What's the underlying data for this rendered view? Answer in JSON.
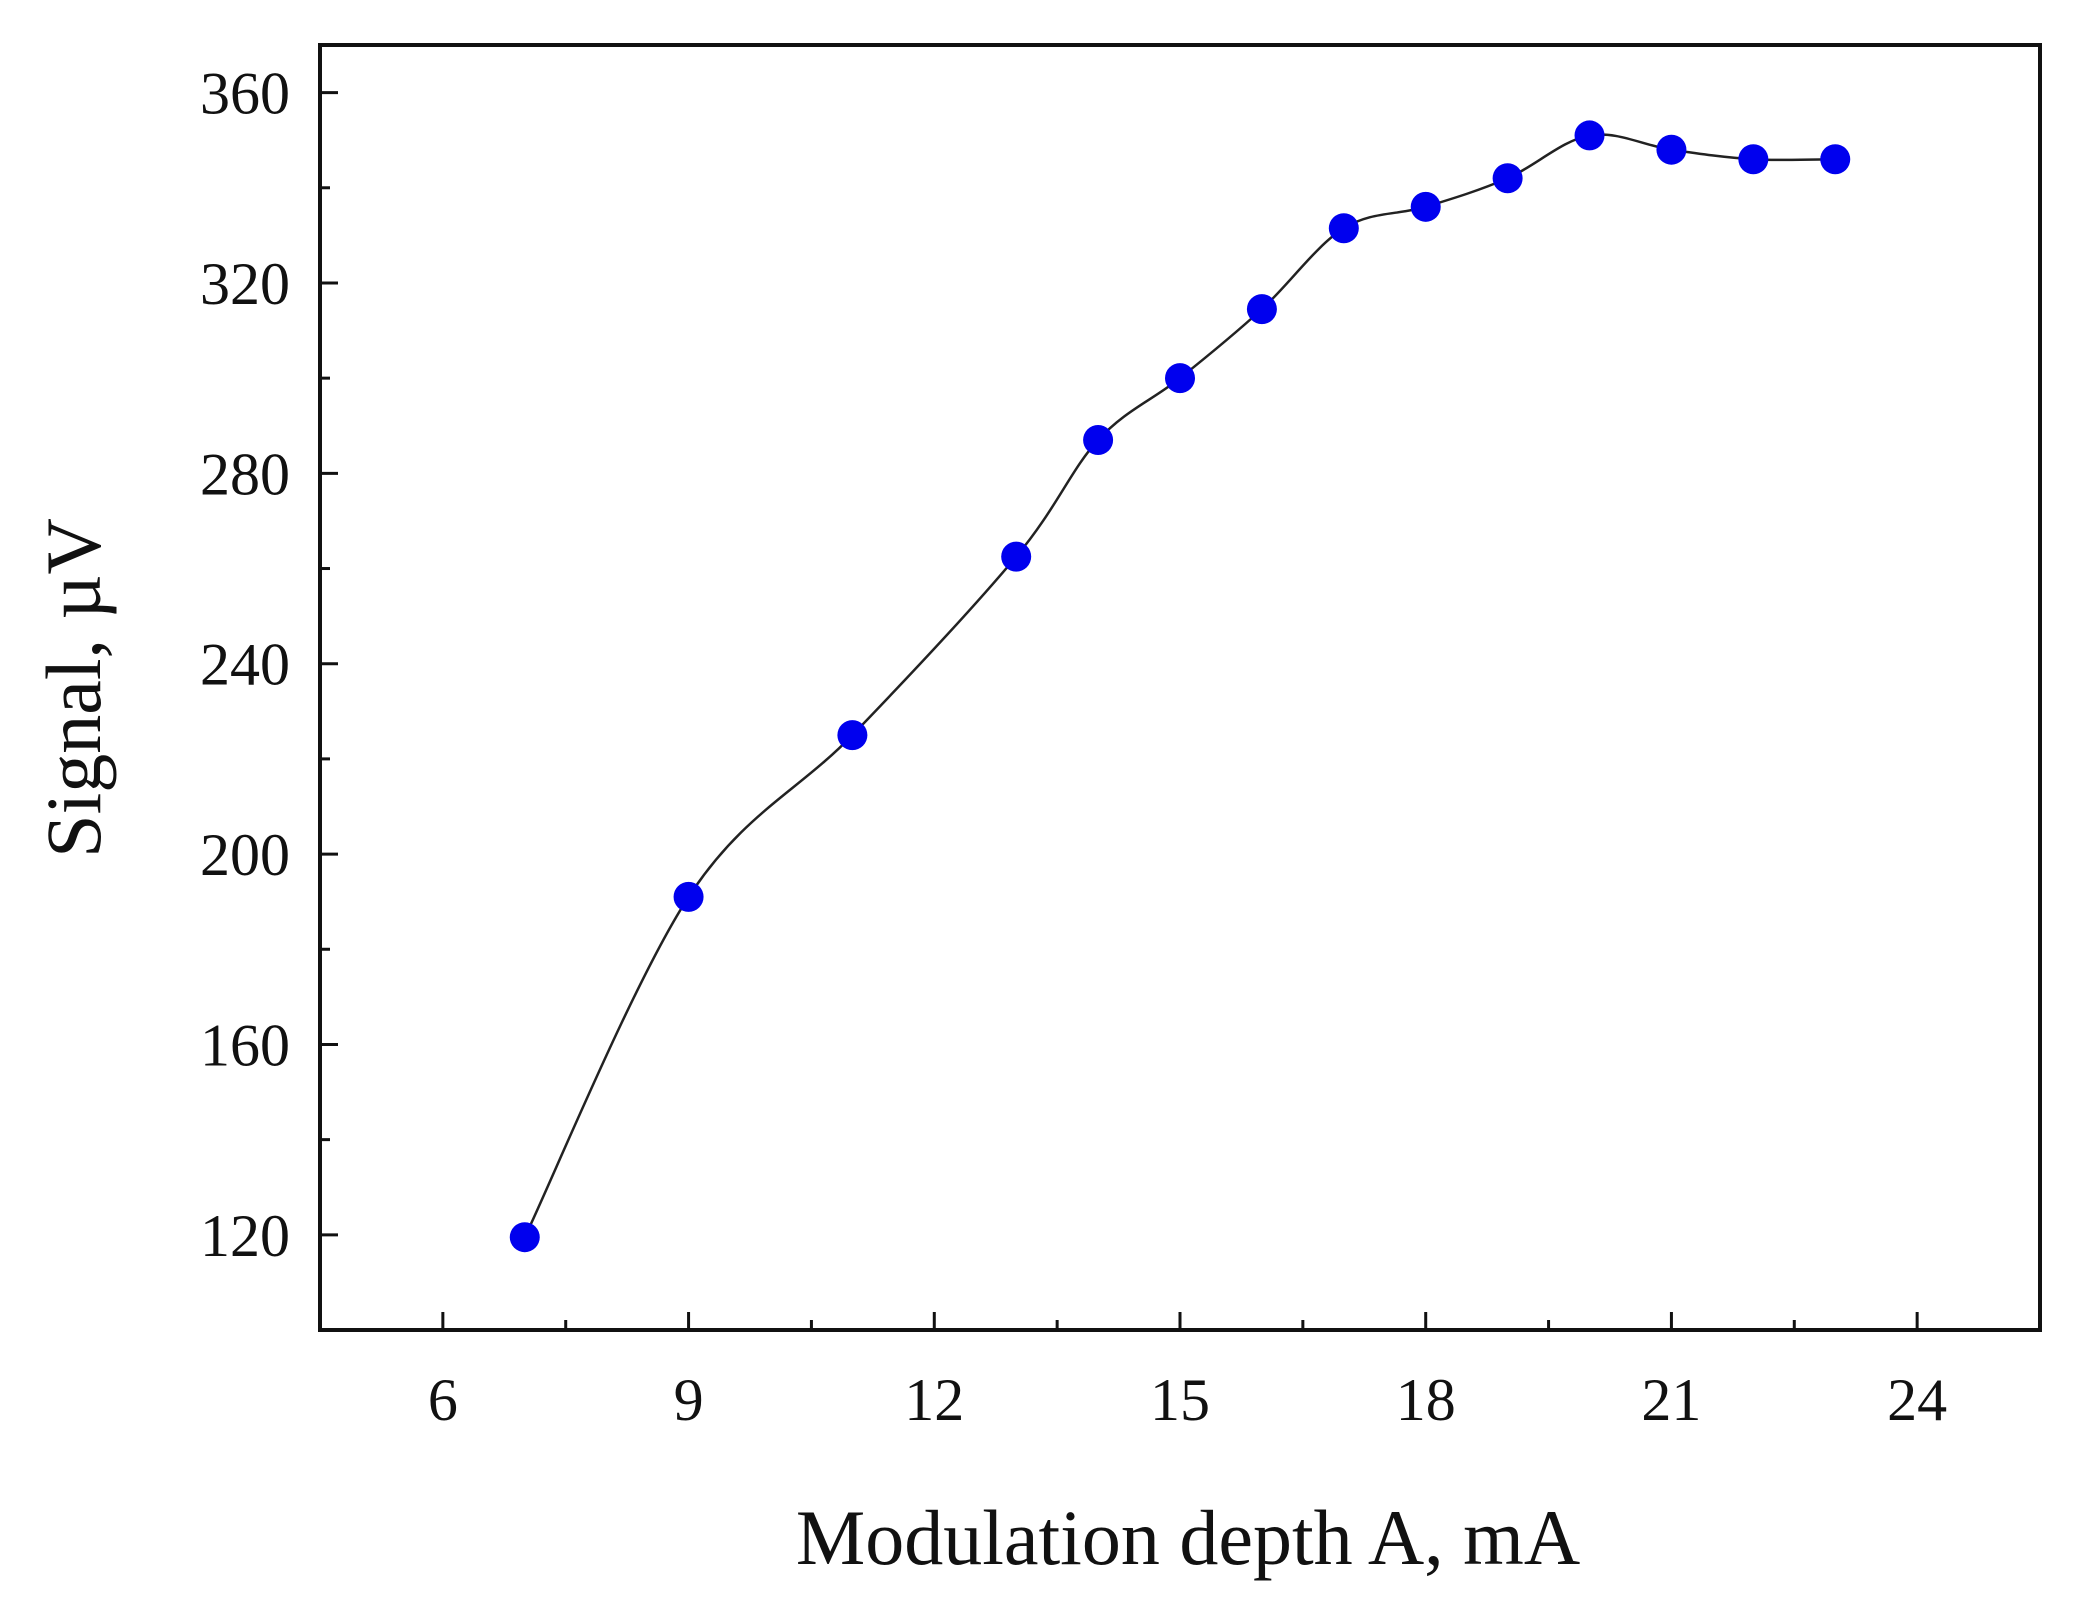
{
  "chart_data": {
    "type": "scatter",
    "title": "",
    "xlabel": "Modulation depth A, mA",
    "ylabel": "Signal, µV",
    "xlim": [
      4.5,
      25.5
    ],
    "ylim": [
      100,
      370
    ],
    "xticks": [
      6,
      9,
      12,
      15,
      18,
      21,
      24
    ],
    "xtick_labels": [
      "6",
      "9",
      "12",
      "15",
      "18",
      "21",
      "24"
    ],
    "xminor": [
      7.5,
      10.5,
      13.5,
      16.5,
      19.5,
      22.5
    ],
    "yticks": [
      120,
      160,
      200,
      240,
      280,
      320,
      360
    ],
    "ytick_labels": [
      "120",
      "160",
      "200",
      "240",
      "280",
      "320",
      "360"
    ],
    "yminor": [
      140,
      180,
      220,
      260,
      300,
      340
    ],
    "grid": false,
    "series": [
      {
        "name": "Signal",
        "marker_color": "#0000ee",
        "line_color": "#222222",
        "x": [
          7,
          9,
          11,
          13,
          14,
          15,
          16,
          17,
          18,
          19,
          20,
          21,
          22,
          23
        ],
        "y": [
          119.5,
          191,
          225,
          262.5,
          287,
          300,
          314.5,
          331.5,
          336,
          342,
          351,
          348,
          346,
          346
        ]
      }
    ]
  }
}
